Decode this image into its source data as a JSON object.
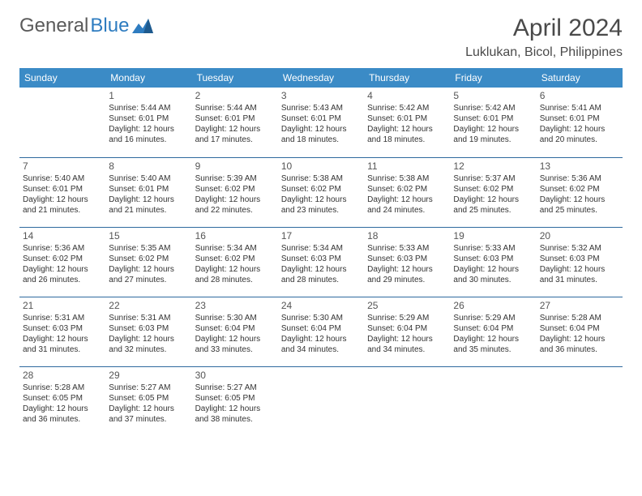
{
  "brand": {
    "part1": "General",
    "part2": "Blue"
  },
  "title": "April 2024",
  "location": "Luklukan, Bicol, Philippines",
  "colors": {
    "header_bg": "#3b8bc6",
    "header_text": "#ffffff",
    "row_border": "#2e6a9e",
    "text": "#333333",
    "title_text": "#4a4a4a",
    "logo_gray": "#5a5a5a",
    "logo_blue": "#2e7cc0",
    "background": "#ffffff"
  },
  "typography": {
    "title_fontsize": 30,
    "location_fontsize": 16,
    "dayheader_fontsize": 12,
    "daynum_fontsize": 12,
    "info_fontsize": 10
  },
  "calendar": {
    "columns": [
      "Sunday",
      "Monday",
      "Tuesday",
      "Wednesday",
      "Thursday",
      "Friday",
      "Saturday"
    ],
    "weeks": [
      [
        null,
        {
          "n": "1",
          "sr": "5:44 AM",
          "ss": "6:01 PM",
          "dl": "12 hours and 16 minutes."
        },
        {
          "n": "2",
          "sr": "5:44 AM",
          "ss": "6:01 PM",
          "dl": "12 hours and 17 minutes."
        },
        {
          "n": "3",
          "sr": "5:43 AM",
          "ss": "6:01 PM",
          "dl": "12 hours and 18 minutes."
        },
        {
          "n": "4",
          "sr": "5:42 AM",
          "ss": "6:01 PM",
          "dl": "12 hours and 18 minutes."
        },
        {
          "n": "5",
          "sr": "5:42 AM",
          "ss": "6:01 PM",
          "dl": "12 hours and 19 minutes."
        },
        {
          "n": "6",
          "sr": "5:41 AM",
          "ss": "6:01 PM",
          "dl": "12 hours and 20 minutes."
        }
      ],
      [
        {
          "n": "7",
          "sr": "5:40 AM",
          "ss": "6:01 PM",
          "dl": "12 hours and 21 minutes."
        },
        {
          "n": "8",
          "sr": "5:40 AM",
          "ss": "6:01 PM",
          "dl": "12 hours and 21 minutes."
        },
        {
          "n": "9",
          "sr": "5:39 AM",
          "ss": "6:02 PM",
          "dl": "12 hours and 22 minutes."
        },
        {
          "n": "10",
          "sr": "5:38 AM",
          "ss": "6:02 PM",
          "dl": "12 hours and 23 minutes."
        },
        {
          "n": "11",
          "sr": "5:38 AM",
          "ss": "6:02 PM",
          "dl": "12 hours and 24 minutes."
        },
        {
          "n": "12",
          "sr": "5:37 AM",
          "ss": "6:02 PM",
          "dl": "12 hours and 25 minutes."
        },
        {
          "n": "13",
          "sr": "5:36 AM",
          "ss": "6:02 PM",
          "dl": "12 hours and 25 minutes."
        }
      ],
      [
        {
          "n": "14",
          "sr": "5:36 AM",
          "ss": "6:02 PM",
          "dl": "12 hours and 26 minutes."
        },
        {
          "n": "15",
          "sr": "5:35 AM",
          "ss": "6:02 PM",
          "dl": "12 hours and 27 minutes."
        },
        {
          "n": "16",
          "sr": "5:34 AM",
          "ss": "6:02 PM",
          "dl": "12 hours and 28 minutes."
        },
        {
          "n": "17",
          "sr": "5:34 AM",
          "ss": "6:03 PM",
          "dl": "12 hours and 28 minutes."
        },
        {
          "n": "18",
          "sr": "5:33 AM",
          "ss": "6:03 PM",
          "dl": "12 hours and 29 minutes."
        },
        {
          "n": "19",
          "sr": "5:33 AM",
          "ss": "6:03 PM",
          "dl": "12 hours and 30 minutes."
        },
        {
          "n": "20",
          "sr": "5:32 AM",
          "ss": "6:03 PM",
          "dl": "12 hours and 31 minutes."
        }
      ],
      [
        {
          "n": "21",
          "sr": "5:31 AM",
          "ss": "6:03 PM",
          "dl": "12 hours and 31 minutes."
        },
        {
          "n": "22",
          "sr": "5:31 AM",
          "ss": "6:03 PM",
          "dl": "12 hours and 32 minutes."
        },
        {
          "n": "23",
          "sr": "5:30 AM",
          "ss": "6:04 PM",
          "dl": "12 hours and 33 minutes."
        },
        {
          "n": "24",
          "sr": "5:30 AM",
          "ss": "6:04 PM",
          "dl": "12 hours and 34 minutes."
        },
        {
          "n": "25",
          "sr": "5:29 AM",
          "ss": "6:04 PM",
          "dl": "12 hours and 34 minutes."
        },
        {
          "n": "26",
          "sr": "5:29 AM",
          "ss": "6:04 PM",
          "dl": "12 hours and 35 minutes."
        },
        {
          "n": "27",
          "sr": "5:28 AM",
          "ss": "6:04 PM",
          "dl": "12 hours and 36 minutes."
        }
      ],
      [
        {
          "n": "28",
          "sr": "5:28 AM",
          "ss": "6:05 PM",
          "dl": "12 hours and 36 minutes."
        },
        {
          "n": "29",
          "sr": "5:27 AM",
          "ss": "6:05 PM",
          "dl": "12 hours and 37 minutes."
        },
        {
          "n": "30",
          "sr": "5:27 AM",
          "ss": "6:05 PM",
          "dl": "12 hours and 38 minutes."
        },
        null,
        null,
        null,
        null
      ]
    ],
    "labels": {
      "sunrise": "Sunrise:",
      "sunset": "Sunset:",
      "daylight": "Daylight:"
    }
  }
}
